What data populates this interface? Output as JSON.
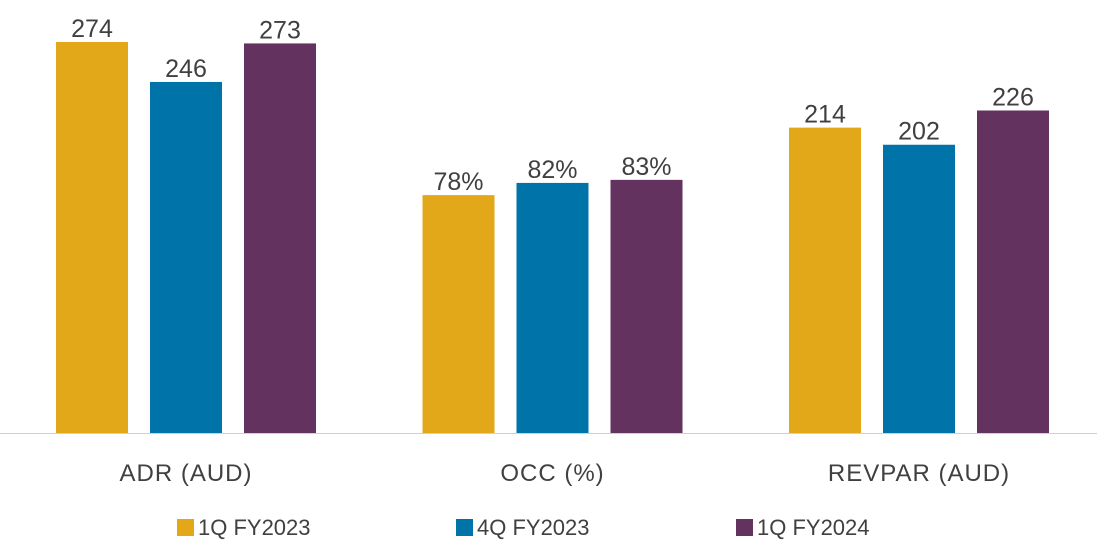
{
  "chart_data": {
    "type": "bar",
    "categories": [
      "ADR (AUD)",
      "OCC (%)",
      "REVPAR (AUD)"
    ],
    "series": [
      {
        "name": "1Q FY2023",
        "color": "#e3a81a",
        "values": [
          274,
          78,
          214
        ],
        "value_labels": [
          "274",
          "78%",
          "214"
        ]
      },
      {
        "name": "4Q FY2023",
        "color": "#0073a8",
        "values": [
          246,
          82,
          202
        ],
        "value_labels": [
          "246",
          "82%",
          "202"
        ]
      },
      {
        "name": "1Q FY2024",
        "color": "#64325f",
        "values": [
          273,
          83,
          226
        ],
        "value_labels": [
          "273",
          "83%",
          "226"
        ]
      }
    ],
    "legend": "bottom"
  }
}
